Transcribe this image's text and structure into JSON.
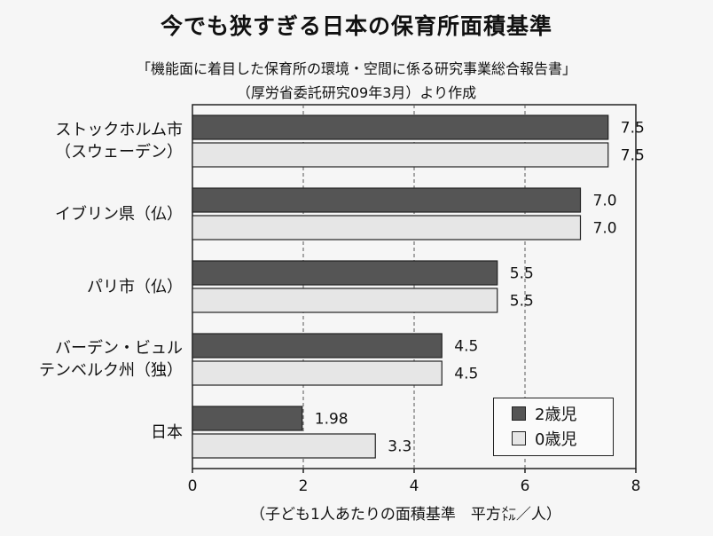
{
  "chart_data": {
    "type": "bar",
    "orientation": "horizontal",
    "title": "今でも狭すぎる日本の保育所面積基準",
    "subtitle_line1": "「機能面に着目した保育所の環境・空間に係る研究事業総合報告書」",
    "subtitle_line2": "（厚労省委託研究09年3月）より作成",
    "categories": [
      [
        "ストックホルム市",
        "（スウェーデン）"
      ],
      [
        "イブリン県（仏）"
      ],
      [
        "パリ市（仏）"
      ],
      [
        "バーデン・ビュル",
        "テンベルク州（独）"
      ],
      [
        "日本"
      ]
    ],
    "series": [
      {
        "name": "2歳児",
        "color": "#555555",
        "values": [
          7.5,
          7.0,
          5.5,
          4.5,
          1.98
        ],
        "labels": [
          "7.5",
          "7.0",
          "5.5",
          "4.5",
          "1.98"
        ]
      },
      {
        "name": "0歳児",
        "color": "#e6e6e6",
        "values": [
          7.5,
          7.0,
          5.5,
          4.5,
          3.3
        ],
        "labels": [
          "7.5",
          "7.0",
          "5.5",
          "4.5",
          "3.3"
        ]
      }
    ],
    "xlim": [
      0,
      8
    ],
    "xticks": [
      "0",
      "2",
      "4",
      "6",
      "8"
    ],
    "xlabel": "（子ども1人あたりの面積基準　平方㍍／人）",
    "grid": "vertical dashed",
    "legend_position": "bottom-right"
  }
}
